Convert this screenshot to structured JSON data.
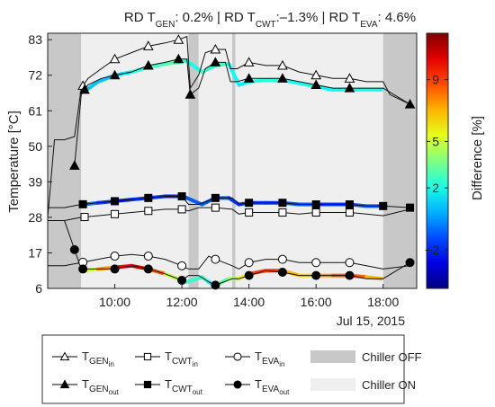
{
  "chart_data": {
    "type": "line",
    "title": {
      "rd_gen_label": "RD T",
      "rd_gen_sub": "GEN",
      "rd_gen_value": ": 0.2% | ",
      "rd_cwt_label": "RD T",
      "rd_cwt_sub": "CWT",
      "rd_cwt_value": ":–1.3% | ",
      "rd_eva_label": "RD T",
      "rd_eva_sub": "EVA",
      "rd_eva_value": ": 4.6%"
    },
    "ylabel": "Temperature [°C]",
    "ylim": [
      6,
      85
    ],
    "xlim": [
      8.0,
      19.0
    ],
    "y_ticks": [
      6,
      17,
      28,
      39,
      50,
      61,
      72,
      83
    ],
    "x_ticks": [
      {
        "value": 10.0,
        "label": "10:00"
      },
      {
        "value": 12.0,
        "label": "12:00"
      },
      {
        "value": 14.0,
        "label": "14:00"
      },
      {
        "value": 16.0,
        "label": "16:00"
      },
      {
        "value": 18.0,
        "label": "18:00"
      }
    ],
    "date_label": "Jul 15, 2015",
    "colorbar": {
      "label": "Difference [%]",
      "range": [
        -4.5,
        12
      ],
      "ticks": [
        {
          "value": -2,
          "label": "−2"
        },
        {
          "value": 2,
          "label": "2"
        },
        {
          "value": 5,
          "label": "5"
        },
        {
          "value": 9,
          "label": "9"
        }
      ],
      "colormap": "jet"
    },
    "regions": [
      {
        "state": "off",
        "start": 8.0,
        "end": 9.0
      },
      {
        "state": "on",
        "start": 9.0,
        "end": 12.2
      },
      {
        "state": "off",
        "start": 12.2,
        "end": 12.5
      },
      {
        "state": "on",
        "start": 12.5,
        "end": 13.5
      },
      {
        "state": "off",
        "start": 13.5,
        "end": 13.6
      },
      {
        "state": "on",
        "start": 13.6,
        "end": 18.0
      },
      {
        "state": "off",
        "start": 18.0,
        "end": 19.0
      }
    ],
    "series": [
      {
        "name": "GEN_in",
        "marker": "triangle-open",
        "x": [
          8.0,
          8.2,
          8.5,
          8.8,
          9.0,
          9.2,
          9.6,
          10.0,
          10.5,
          11.0,
          11.5,
          11.9,
          12.15,
          12.25,
          12.5,
          12.7,
          13.0,
          13.3,
          13.45,
          13.65,
          14.0,
          14.5,
          15.0,
          15.5,
          16.0,
          16.5,
          17.0,
          17.5,
          18.0,
          18.2,
          18.8
        ],
        "y": [
          28,
          52,
          52,
          53,
          68,
          71,
          74,
          77,
          79,
          81,
          82,
          83,
          84,
          68,
          72,
          79,
          80,
          80,
          74,
          74,
          76,
          75,
          75,
          73,
          72,
          71,
          71,
          70,
          70,
          66,
          63
        ],
        "marker_x": [
          9.05,
          10.0,
          11.0,
          11.9,
          13.0,
          14.0,
          15.0,
          16.0,
          17.0
        ]
      },
      {
        "name": "GEN_out",
        "marker": "triangle-filled",
        "x": [
          8.8,
          9.0,
          9.2,
          9.6,
          10.0,
          10.5,
          11.0,
          11.5,
          11.9,
          12.15,
          12.25,
          12.5,
          12.7,
          13.0,
          13.3,
          13.45,
          13.65,
          14.0,
          14.5,
          15.0,
          15.5,
          16.0,
          16.5,
          17.0,
          17.5,
          18.0,
          18.8
        ],
        "y": [
          44,
          66,
          69,
          71,
          72,
          73,
          75,
          76,
          77,
          77,
          66,
          68,
          74,
          76,
          76,
          70,
          70,
          71,
          71,
          71,
          70,
          69,
          68,
          68,
          68,
          68,
          63
        ],
        "marker_x": [
          8.8,
          9.1,
          10.0,
          11.0,
          11.9,
          12.25,
          13.0,
          14.0,
          15.0,
          16.0,
          17.0,
          18.8
        ]
      },
      {
        "name": "CWT_in",
        "marker": "square-open",
        "x": [
          8.0,
          8.5,
          9.0,
          9.5,
          10.0,
          10.5,
          11.0,
          11.5,
          12.0,
          12.2,
          12.5,
          13.0,
          13.5,
          13.7,
          14.0,
          14.5,
          15.0,
          15.5,
          16.0,
          16.5,
          17.0,
          17.5,
          18.0,
          18.8
        ],
        "y": [
          27,
          27,
          28,
          28.5,
          29,
          29.5,
          30,
          30.5,
          30.5,
          30,
          31,
          31,
          30.5,
          29,
          29.5,
          29.5,
          29.5,
          29,
          29.5,
          29.5,
          29.5,
          29,
          28.5,
          30.5
        ],
        "marker_x": [
          9.1,
          10.0,
          11.0,
          12.0,
          13.0,
          14.0,
          15.0,
          16.0,
          17.0
        ]
      },
      {
        "name": "CWT_out",
        "marker": "square-filled",
        "x": [
          8.0,
          8.5,
          9.0,
          9.5,
          10.0,
          10.5,
          11.0,
          11.5,
          12.0,
          12.2,
          12.5,
          13.0,
          13.5,
          13.7,
          14.0,
          14.5,
          15.0,
          15.5,
          16.0,
          16.5,
          17.0,
          17.5,
          18.0,
          18.8
        ],
        "y": [
          31,
          31,
          32,
          32.5,
          33,
          33.5,
          34,
          34.5,
          34.5,
          32,
          32,
          34,
          34,
          32,
          32.5,
          32.5,
          32.5,
          32,
          32,
          32,
          32,
          31.5,
          31.5,
          31
        ],
        "marker_x": [
          9.05,
          10.0,
          11.0,
          12.0,
          13.0,
          14.0,
          15.0,
          16.0,
          17.0,
          18.0,
          18.8
        ]
      },
      {
        "name": "EVA_in",
        "marker": "circle-open",
        "x": [
          8.0,
          8.5,
          9.0,
          9.5,
          10.0,
          10.5,
          11.0,
          11.5,
          12.0,
          12.2,
          12.5,
          12.8,
          13.0,
          13.5,
          13.7,
          14.0,
          14.5,
          15.0,
          15.5,
          16.0,
          16.5,
          17.0,
          17.5,
          18.0,
          18.8
        ],
        "y": [
          13,
          13,
          14,
          15,
          16,
          16.5,
          16,
          15,
          13,
          12,
          12,
          16,
          15,
          13,
          12,
          14,
          15,
          15,
          14,
          14,
          14,
          14,
          13,
          12,
          13
        ],
        "marker_x": [
          9.05,
          10.0,
          11.0,
          12.0,
          13.0,
          14.0,
          15.0,
          16.0,
          17.0
        ]
      },
      {
        "name": "EVA_out",
        "marker": "circle-filled",
        "x": [
          8.0,
          8.5,
          9.0,
          9.5,
          10.0,
          10.5,
          11.0,
          11.5,
          12.0,
          12.2,
          12.5,
          12.8,
          13.0,
          13.5,
          13.7,
          14.0,
          14.5,
          15.0,
          15.5,
          16.0,
          16.5,
          17.0,
          17.5,
          18.0,
          18.8
        ],
        "y": [
          27,
          27,
          12,
          12,
          12,
          13,
          12,
          10.5,
          8.5,
          10,
          10,
          8,
          7,
          9,
          9,
          10,
          11.5,
          11,
          10,
          10,
          10,
          10,
          9,
          9,
          14
        ],
        "marker_x": [
          8.8,
          9.05,
          10.0,
          11.0,
          12.0,
          13.0,
          14.0,
          15.0,
          16.0,
          17.0,
          18.8
        ]
      }
    ],
    "model_bands": [
      {
        "series": "GEN_out",
        "x": [
          9.1,
          9.5,
          10.0,
          10.5,
          11.0,
          11.5,
          11.9,
          12.15,
          12.6,
          13.0,
          13.4,
          13.7,
          14.0,
          14.5,
          15.0,
          15.5,
          16.0,
          16.5,
          17.0,
          17.5,
          17.95
        ],
        "y": [
          67,
          70,
          72,
          73,
          74.5,
          75.5,
          76,
          76.5,
          73,
          75,
          75.5,
          69,
          70,
          70.5,
          70.5,
          69.5,
          68.5,
          67.5,
          67.5,
          67.5,
          67.5
        ],
        "diff": [
          1,
          0.5,
          1,
          2,
          2.5,
          3,
          3,
          2,
          2,
          3,
          2.5,
          1,
          2,
          2.5,
          2,
          2,
          2,
          1.5,
          2,
          2,
          2
        ]
      },
      {
        "series": "CWT_out",
        "x": [
          9.1,
          9.5,
          10.0,
          10.5,
          11.0,
          11.5,
          12.0,
          12.15,
          12.6,
          13.0,
          13.4,
          13.7,
          14.0,
          14.5,
          15.0,
          15.5,
          16.0,
          16.5,
          17.0,
          17.5,
          17.95
        ],
        "y": [
          32,
          32.5,
          33,
          33.5,
          34,
          34.5,
          34.5,
          34,
          32,
          34,
          34,
          32,
          32.5,
          32.5,
          32.5,
          32,
          32,
          32,
          32,
          31.5,
          31.5
        ],
        "diff": [
          0,
          -1,
          -2,
          -2,
          -1,
          -2,
          -2,
          -1,
          -1,
          -1,
          -1,
          -2,
          -1,
          -2,
          -1,
          -1,
          -1,
          -2,
          -1,
          -1,
          -1
        ]
      },
      {
        "series": "EVA_out",
        "x": [
          9.1,
          9.5,
          10.0,
          10.5,
          11.0,
          11.5,
          12.0,
          12.15,
          12.6,
          12.8,
          13.0,
          13.4,
          13.7,
          14.0,
          14.5,
          15.0,
          15.5,
          16.0,
          16.5,
          17.0,
          17.5,
          17.95
        ],
        "y": [
          11.5,
          12,
          12.5,
          13,
          12,
          10.5,
          8.5,
          8,
          9.5,
          8,
          7,
          9,
          9,
          10.5,
          11.5,
          11.5,
          10,
          10,
          10,
          10,
          9.5,
          9
        ],
        "diff": [
          4,
          6,
          9,
          11,
          10,
          7,
          3,
          2,
          3,
          2,
          1,
          5,
          4,
          8,
          10,
          8,
          6,
          7,
          8,
          9,
          8,
          6
        ]
      }
    ],
    "legend": {
      "entries": [
        {
          "base": "T",
          "sub": "GEN",
          "subsub": "in",
          "marker": "triangle-open"
        },
        {
          "base": "T",
          "sub": "CWT",
          "subsub": "in",
          "marker": "square-open"
        },
        {
          "base": "T",
          "sub": "EVA",
          "subsub": "in",
          "marker": "circle-open"
        },
        {
          "label": "Chiller OFF",
          "marker": "patch-off"
        },
        {
          "base": "T",
          "sub": "GEN",
          "subsub": "out",
          "marker": "triangle-filled"
        },
        {
          "base": "T",
          "sub": "CWT",
          "subsub": "out",
          "marker": "square-filled"
        },
        {
          "base": "T",
          "sub": "EVA",
          "subsub": "out",
          "marker": "circle-filled"
        },
        {
          "label": "Chiller ON",
          "marker": "patch-on"
        }
      ]
    },
    "colors": {
      "off_region": "#c8c8c8",
      "on_region": "#efefef",
      "line": "#111111"
    }
  }
}
